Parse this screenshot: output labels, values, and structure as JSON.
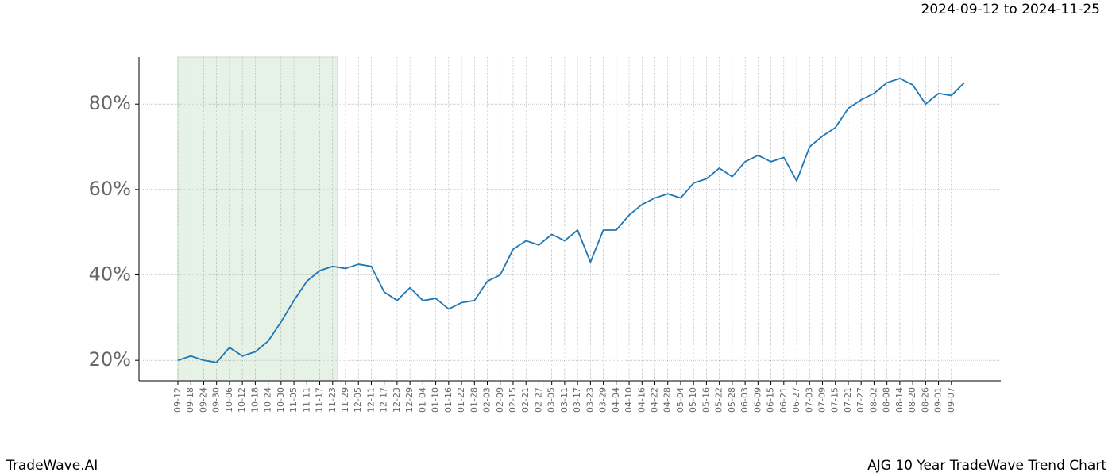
{
  "chart_data": {
    "type": "line",
    "date_range": "2024-09-12 to 2024-11-25",
    "brand": "TradeWave.AI",
    "title": "AJG 10 Year TradeWave Trend Chart",
    "categories": [
      "09-12",
      "09-18",
      "09-24",
      "09-30",
      "10-06",
      "10-12",
      "10-18",
      "10-24",
      "10-30",
      "11-05",
      "11-11",
      "11-17",
      "11-23",
      "11-29",
      "12-05",
      "12-11",
      "12-17",
      "12-23",
      "12-29",
      "01-04",
      "01-10",
      "01-16",
      "01-22",
      "01-28",
      "02-03",
      "02-09",
      "02-15",
      "02-21",
      "02-27",
      "03-05",
      "03-11",
      "03-17",
      "03-23",
      "03-29",
      "04-04",
      "04-10",
      "04-16",
      "04-22",
      "04-28",
      "05-04",
      "05-10",
      "05-16",
      "05-22",
      "05-28",
      "06-03",
      "06-09",
      "06-15",
      "06-21",
      "06-27",
      "07-03",
      "07-09",
      "07-15",
      "07-21",
      "07-27",
      "08-02",
      "08-08",
      "08-14",
      "08-20",
      "08-26",
      "09-01",
      "09-07",
      null
    ],
    "series": [
      {
        "color": "#1f77b4",
        "values": [
          20,
          21,
          20,
          19.5,
          23,
          21,
          22,
          24.5,
          29,
          34,
          38.5,
          41,
          42,
          41.5,
          42.5,
          42,
          36,
          34,
          37,
          34,
          34.5,
          32,
          33.5,
          34,
          38.5,
          40,
          46,
          48,
          47,
          49.5,
          48,
          50.5,
          43,
          50.5,
          50.5,
          54,
          56.5,
          58,
          59,
          58,
          61.5,
          62.5,
          65,
          63,
          66.5,
          68,
          66.5,
          67.5,
          62,
          70,
          72.5,
          74.5,
          79,
          81,
          82.5,
          85,
          86,
          84.5,
          80,
          82.5,
          82,
          85
        ]
      }
    ],
    "ylim": [
      15.2,
      91
    ],
    "yticks": [
      {
        "value": 20,
        "label": "20%"
      },
      {
        "value": 40,
        "label": "40%"
      },
      {
        "value": 60,
        "label": "60%"
      },
      {
        "value": 80,
        "label": "80%"
      }
    ],
    "grid": true
  }
}
